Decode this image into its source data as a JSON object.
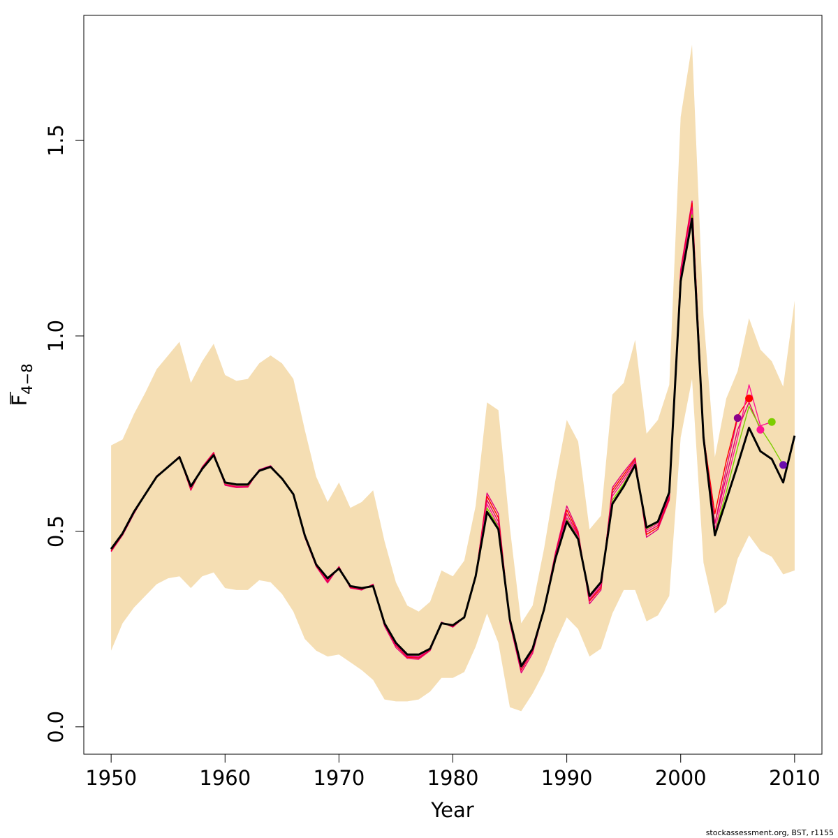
{
  "chart_data": {
    "type": "line",
    "xlabel": "Year",
    "ylabel": {
      "symbol": "F",
      "subscript": "4−8"
    },
    "xlim": [
      1947.6,
      2012.4
    ],
    "ylim": [
      -0.07,
      1.82
    ],
    "x_ticks": [
      "1950",
      "1960",
      "1970",
      "1980",
      "1990",
      "2000",
      "2010"
    ],
    "y_ticks": [
      "0.0",
      "0.5",
      "1.0",
      "1.5"
    ],
    "grid": false,
    "legend": "none",
    "footer": "stockassessment.org, BST, r1155",
    "colors": {
      "band": "#F5DEB3",
      "main_line": "#000000",
      "retro_1": "#E3007E",
      "retro_2": "#FF0000",
      "retro_3": "#E0006A",
      "retro_4": "#FF1493",
      "retro_5": "#7CCD00",
      "retro_6": "#8B008B",
      "retro_7": "#6A0DAD"
    },
    "band": {
      "name": "confidence interval",
      "x": [
        1950,
        1951,
        1952,
        1953,
        1954,
        1955,
        1956,
        1957,
        1958,
        1959,
        1960,
        1961,
        1962,
        1963,
        1964,
        1965,
        1966,
        1967,
        1968,
        1969,
        1970,
        1971,
        1972,
        1973,
        1974,
        1975,
        1976,
        1977,
        1978,
        1979,
        1980,
        1981,
        1982,
        1983,
        1984,
        1985,
        1986,
        1987,
        1988,
        1989,
        1990,
        1991,
        1992,
        1993,
        1994,
        1995,
        1996,
        1997,
        1998,
        1999,
        2000,
        2001,
        2002,
        2003,
        2004,
        2005,
        2006,
        2007,
        2008,
        2009,
        2010
      ],
      "upper": [
        0.72,
        0.735,
        0.8,
        0.855,
        0.915,
        0.95,
        0.985,
        0.88,
        0.935,
        0.98,
        0.9,
        0.885,
        0.89,
        0.93,
        0.95,
        0.93,
        0.89,
        0.76,
        0.64,
        0.575,
        0.625,
        0.56,
        0.575,
        0.605,
        0.475,
        0.37,
        0.31,
        0.295,
        0.32,
        0.4,
        0.385,
        0.425,
        0.565,
        0.83,
        0.81,
        0.51,
        0.265,
        0.31,
        0.455,
        0.63,
        0.785,
        0.73,
        0.505,
        0.54,
        0.85,
        0.88,
        0.99,
        0.75,
        0.785,
        0.875,
        1.56,
        1.745,
        1.05,
        0.69,
        0.84,
        0.91,
        1.045,
        0.965,
        0.935,
        0.87,
        1.09
      ],
      "lower": [
        0.195,
        0.265,
        0.305,
        0.335,
        0.365,
        0.38,
        0.385,
        0.355,
        0.385,
        0.395,
        0.355,
        0.35,
        0.35,
        0.375,
        0.37,
        0.34,
        0.295,
        0.225,
        0.195,
        0.18,
        0.185,
        0.165,
        0.145,
        0.12,
        0.07,
        0.065,
        0.065,
        0.07,
        0.09,
        0.125,
        0.125,
        0.14,
        0.205,
        0.29,
        0.215,
        0.05,
        0.04,
        0.085,
        0.14,
        0.215,
        0.28,
        0.25,
        0.18,
        0.2,
        0.29,
        0.35,
        0.35,
        0.27,
        0.285,
        0.335,
        0.74,
        0.89,
        0.42,
        0.29,
        0.315,
        0.43,
        0.49,
        0.45,
        0.435,
        0.39,
        0.4
      ]
    },
    "series": [
      {
        "role": "main",
        "x": [
          1950,
          1951,
          1952,
          1953,
          1954,
          1955,
          1956,
          1957,
          1958,
          1959,
          1960,
          1961,
          1962,
          1963,
          1964,
          1965,
          1966,
          1967,
          1968,
          1969,
          1970,
          1971,
          1972,
          1973,
          1974,
          1975,
          1976,
          1977,
          1978,
          1979,
          1980,
          1981,
          1982,
          1983,
          1984,
          1985,
          1986,
          1987,
          1988,
          1989,
          1990,
          1991,
          1992,
          1993,
          1994,
          1995,
          1996,
          1997,
          1998,
          1999,
          2000,
          2001,
          2002,
          2003,
          2004,
          2005,
          2006,
          2007,
          2008,
          2009,
          2010
        ],
        "values": [
          0.455,
          0.495,
          0.55,
          0.595,
          0.64,
          0.665,
          0.69,
          0.615,
          0.66,
          0.695,
          0.625,
          0.62,
          0.62,
          0.655,
          0.665,
          0.635,
          0.595,
          0.49,
          0.415,
          0.38,
          0.405,
          0.36,
          0.355,
          0.36,
          0.265,
          0.215,
          0.185,
          0.185,
          0.2,
          0.265,
          0.26,
          0.28,
          0.385,
          0.55,
          0.505,
          0.275,
          0.155,
          0.2,
          0.3,
          0.43,
          0.525,
          0.48,
          0.335,
          0.37,
          0.57,
          0.615,
          0.67,
          0.51,
          0.525,
          0.6,
          1.14,
          1.3,
          0.74,
          0.49,
          0.58,
          0.67,
          0.765,
          0.705,
          0.685,
          0.625,
          0.745
        ]
      },
      {
        "role": "retro",
        "x": [
          1950,
          1951,
          1952,
          1953,
          1954,
          1955,
          1956,
          1957,
          1958,
          1959,
          1960,
          1961,
          1962,
          1963,
          1964,
          1965,
          1966,
          1967,
          1968,
          1969,
          1970,
          1971,
          1972,
          1973,
          1974,
          1975,
          1976,
          1977,
          1978,
          1979,
          1980,
          1981,
          1982,
          1983,
          1984,
          1985,
          1986,
          1987,
          1988,
          1989,
          1990,
          1991,
          1992,
          1993,
          1994,
          1995,
          1996,
          1997,
          1998,
          1999,
          2000,
          2001,
          2002,
          2003,
          2004,
          2005
        ],
        "values": [
          0.448,
          0.49,
          0.545,
          0.595,
          0.642,
          0.665,
          0.692,
          0.605,
          0.665,
          0.702,
          0.618,
          0.612,
          0.613,
          0.658,
          0.668,
          0.635,
          0.595,
          0.485,
          0.41,
          0.368,
          0.41,
          0.355,
          0.35,
          0.365,
          0.258,
          0.203,
          0.175,
          0.173,
          0.195,
          0.268,
          0.255,
          0.28,
          0.382,
          0.598,
          0.545,
          0.265,
          0.138,
          0.188,
          0.3,
          0.445,
          0.565,
          0.5,
          0.315,
          0.35,
          0.612,
          0.652,
          0.688,
          0.485,
          0.505,
          0.58,
          1.17,
          1.345,
          0.75,
          0.52,
          0.66,
          0.79
        ]
      },
      {
        "role": "retro",
        "x": [
          1950,
          1951,
          1952,
          1953,
          1954,
          1955,
          1956,
          1957,
          1958,
          1959,
          1960,
          1961,
          1962,
          1963,
          1964,
          1965,
          1966,
          1967,
          1968,
          1969,
          1970,
          1971,
          1972,
          1973,
          1974,
          1975,
          1976,
          1977,
          1978,
          1979,
          1980,
          1981,
          1982,
          1983,
          1984,
          1985,
          1986,
          1987,
          1988,
          1989,
          1990,
          1991,
          1992,
          1993,
          1994,
          1995,
          1996,
          1997,
          1998,
          1999,
          2000,
          2001,
          2002,
          2003,
          2004,
          2005,
          2006
        ],
        "values": [
          0.45,
          0.492,
          0.547,
          0.595,
          0.641,
          0.665,
          0.69,
          0.607,
          0.663,
          0.7,
          0.62,
          0.614,
          0.615,
          0.656,
          0.666,
          0.635,
          0.595,
          0.487,
          0.412,
          0.372,
          0.408,
          0.357,
          0.352,
          0.363,
          0.262,
          0.208,
          0.178,
          0.176,
          0.197,
          0.266,
          0.257,
          0.28,
          0.383,
          0.59,
          0.535,
          0.27,
          0.145,
          0.194,
          0.3,
          0.44,
          0.555,
          0.495,
          0.322,
          0.355,
          0.605,
          0.645,
          0.685,
          0.492,
          0.51,
          0.585,
          1.16,
          1.34,
          0.745,
          0.545,
          0.68,
          0.795,
          0.84
        ]
      },
      {
        "role": "retro",
        "x": [
          1950,
          1951,
          1952,
          1953,
          1954,
          1955,
          1956,
          1957,
          1958,
          1959,
          1960,
          1961,
          1962,
          1963,
          1964,
          1965,
          1966,
          1967,
          1968,
          1969,
          1970,
          1971,
          1972,
          1973,
          1974,
          1975,
          1976,
          1977,
          1978,
          1979,
          1980,
          1981,
          1982,
          1983,
          1984,
          1985,
          1986,
          1987,
          1988,
          1989,
          1990,
          1991,
          1992,
          1993,
          1994,
          1995,
          1996,
          1997,
          1998,
          1999,
          2000,
          2001,
          2002,
          2003,
          2004,
          2005,
          2006,
          2007
        ],
        "values": [
          0.452,
          0.493,
          0.548,
          0.595,
          0.641,
          0.665,
          0.69,
          0.609,
          0.662,
          0.698,
          0.621,
          0.615,
          0.616,
          0.656,
          0.666,
          0.635,
          0.595,
          0.488,
          0.413,
          0.374,
          0.407,
          0.358,
          0.353,
          0.362,
          0.263,
          0.21,
          0.18,
          0.178,
          0.198,
          0.266,
          0.258,
          0.28,
          0.384,
          0.58,
          0.525,
          0.272,
          0.148,
          0.196,
          0.3,
          0.438,
          0.545,
          0.49,
          0.325,
          0.36,
          0.598,
          0.638,
          0.68,
          0.498,
          0.515,
          0.59,
          1.155,
          1.33,
          0.745,
          0.52,
          0.64,
          0.76,
          0.83,
          0.76
        ]
      },
      {
        "role": "retro",
        "x": [
          1950,
          1951,
          1952,
          1953,
          1954,
          1955,
          1956,
          1957,
          1958,
          1959,
          1960,
          1961,
          1962,
          1963,
          1964,
          1965,
          1966,
          1967,
          1968,
          1969,
          1970,
          1971,
          1972,
          1973,
          1974,
          1975,
          1976,
          1977,
          1978,
          1979,
          1980,
          1981,
          1982,
          1983,
          1984,
          1985,
          1986,
          1987,
          1988,
          1989,
          1990,
          1991,
          1992,
          1993,
          1994,
          1995,
          1996,
          1997,
          1998,
          1999,
          2000,
          2001,
          2002,
          2003,
          2004,
          2005,
          2006,
          2007,
          2008
        ],
        "values": [
          0.453,
          0.494,
          0.549,
          0.595,
          0.641,
          0.665,
          0.69,
          0.611,
          0.661,
          0.697,
          0.622,
          0.616,
          0.617,
          0.655,
          0.665,
          0.635,
          0.595,
          0.489,
          0.414,
          0.376,
          0.406,
          0.359,
          0.354,
          0.361,
          0.264,
          0.212,
          0.182,
          0.18,
          0.199,
          0.265,
          0.259,
          0.28,
          0.384,
          0.57,
          0.515,
          0.273,
          0.15,
          0.198,
          0.3,
          0.435,
          0.535,
          0.487,
          0.33,
          0.365,
          0.59,
          0.63,
          0.675,
          0.503,
          0.52,
          0.595,
          1.15,
          1.32,
          0.742,
          0.505,
          0.62,
          0.74,
          0.875,
          0.77,
          0.78
        ]
      },
      {
        "role": "retro",
        "x": [
          1950,
          1951,
          1952,
          1953,
          1954,
          1955,
          1956,
          1957,
          1958,
          1959,
          1960,
          1961,
          1962,
          1963,
          1964,
          1965,
          1966,
          1967,
          1968,
          1969,
          1970,
          1971,
          1972,
          1973,
          1974,
          1975,
          1976,
          1977,
          1978,
          1979,
          1980,
          1981,
          1982,
          1983,
          1984,
          1985,
          1986,
          1987,
          1988,
          1989,
          1990,
          1991,
          1992,
          1993,
          1994,
          1995,
          1996,
          1997,
          1998,
          1999,
          2000,
          2001,
          2002,
          2003,
          2004,
          2005,
          2006,
          2007,
          2008,
          2009
        ],
        "values": [
          0.454,
          0.494,
          0.549,
          0.595,
          0.64,
          0.665,
          0.69,
          0.613,
          0.66,
          0.696,
          0.623,
          0.618,
          0.618,
          0.655,
          0.665,
          0.635,
          0.595,
          0.49,
          0.414,
          0.378,
          0.405,
          0.36,
          0.355,
          0.36,
          0.265,
          0.214,
          0.184,
          0.183,
          0.2,
          0.265,
          0.26,
          0.28,
          0.385,
          0.56,
          0.51,
          0.274,
          0.152,
          0.199,
          0.3,
          0.432,
          0.53,
          0.484,
          0.333,
          0.368,
          0.58,
          0.622,
          0.672,
          0.507,
          0.523,
          0.598,
          1.145,
          1.31,
          0.74,
          0.495,
          0.6,
          0.715,
          0.82,
          0.765,
          0.72,
          0.67
        ]
      }
    ],
    "retro_endpoints": [
      {
        "x": 2005,
        "y": 0.79
      },
      {
        "x": 2006,
        "y": 0.84
      },
      {
        "x": 2007,
        "y": 0.76
      },
      {
        "x": 2008,
        "y": 0.78
      },
      {
        "x": 2009,
        "y": 0.67
      }
    ]
  }
}
